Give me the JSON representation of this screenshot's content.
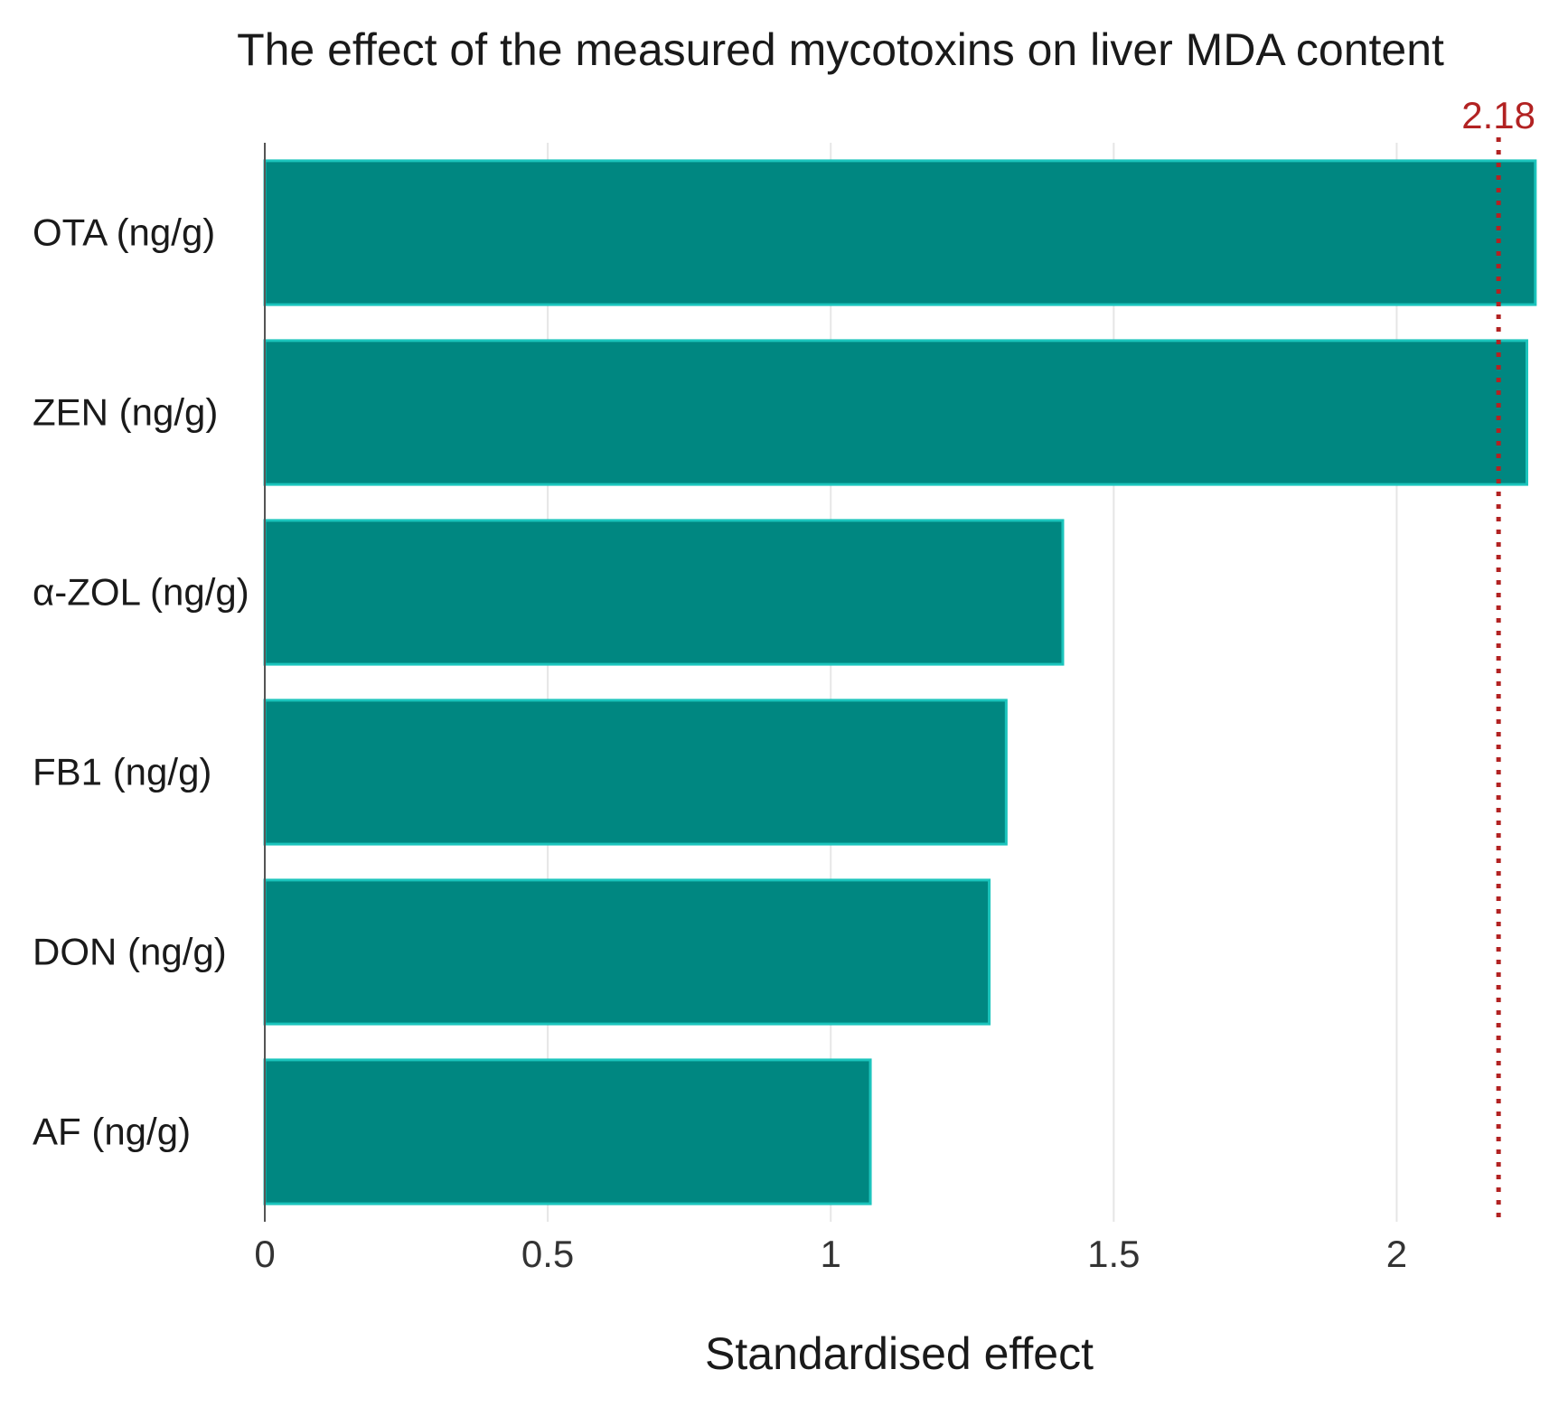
{
  "chart_data": {
    "type": "bar",
    "orientation": "horizontal",
    "title": "The effect of the measured mycotoxins on liver MDA content",
    "xlabel": "Standardised effect",
    "ylabel": "",
    "categories": [
      "OTA (ng/g)",
      "ZEN (ng/g)",
      "α-ZOL (ng/g)",
      "FB1 (ng/g)",
      "DON (ng/g)",
      "AF (ng/g)"
    ],
    "values": [
      2.245,
      2.23,
      1.41,
      1.31,
      1.28,
      1.07
    ],
    "xlim": [
      0,
      2.25
    ],
    "xticks": [
      0,
      0.5,
      1,
      1.5,
      2
    ],
    "xtick_labels": [
      "0",
      "0.5",
      "1",
      "1.5",
      "2"
    ],
    "grid": "vertical",
    "bar_color": "#008781",
    "bar_edge_color": "#1bc4bc",
    "reference_line": {
      "value": 2.18,
      "label": "2.18",
      "style": "dotted",
      "color": "#b22222"
    }
  }
}
